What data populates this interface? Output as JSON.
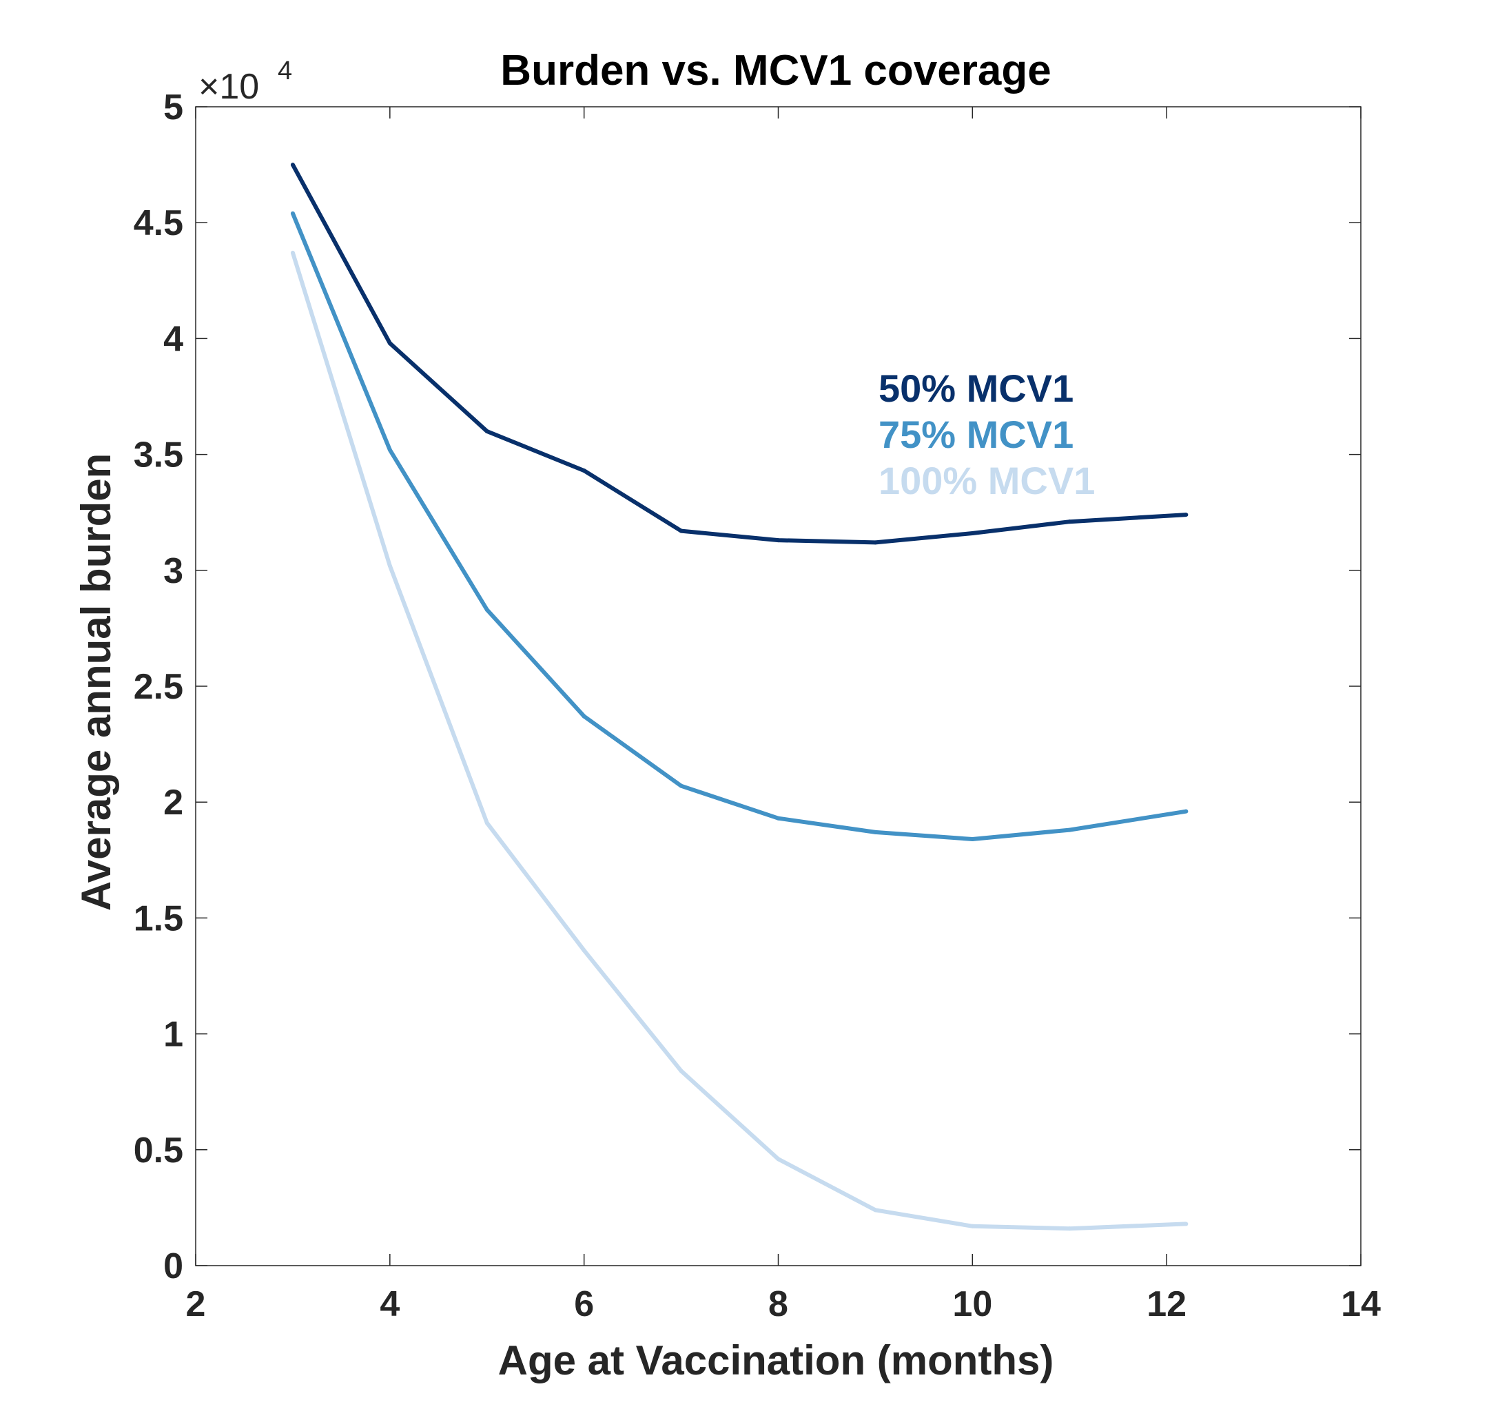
{
  "chart_data": {
    "type": "line",
    "title": "Burden vs. MCV1 coverage",
    "xlabel": "Age at Vaccination (months)",
    "ylabel": "Average annual burden",
    "y_exponent_label": "×10",
    "y_exponent_power": "4",
    "xlim": [
      2,
      14
    ],
    "ylim": [
      0,
      5
    ],
    "x_ticks": [
      2,
      4,
      6,
      8,
      10,
      12,
      14
    ],
    "x_tick_labels": [
      "2",
      "4",
      "6",
      "8",
      "10",
      "12",
      "14"
    ],
    "y_ticks": [
      0,
      0.5,
      1,
      1.5,
      2,
      2.5,
      3,
      3.5,
      4,
      4.5,
      5
    ],
    "y_tick_labels": [
      "0",
      "0.5",
      "1",
      "1.5",
      "2",
      "2.5",
      "3",
      "3.5",
      "4",
      "4.5",
      "5"
    ],
    "grid": false,
    "box": true,
    "legend_placement": "upper-right (inside plot)",
    "x": [
      3,
      4,
      5,
      6,
      7,
      8,
      9,
      10,
      11,
      12.2
    ],
    "series": [
      {
        "name": "50% MCV1",
        "color": "#08306b",
        "values": [
          4.75,
          3.98,
          3.6,
          3.43,
          3.17,
          3.13,
          3.12,
          3.16,
          3.21,
          3.24
        ]
      },
      {
        "name": "75% MCV1",
        "color": "#4292c6",
        "values": [
          4.54,
          3.52,
          2.83,
          2.37,
          2.07,
          1.93,
          1.87,
          1.84,
          1.88,
          1.96
        ]
      },
      {
        "name": "100% MCV1",
        "color": "#c6dbef",
        "values": [
          4.37,
          3.02,
          1.91,
          1.36,
          0.84,
          0.46,
          0.24,
          0.17,
          0.16,
          0.18
        ]
      }
    ]
  }
}
